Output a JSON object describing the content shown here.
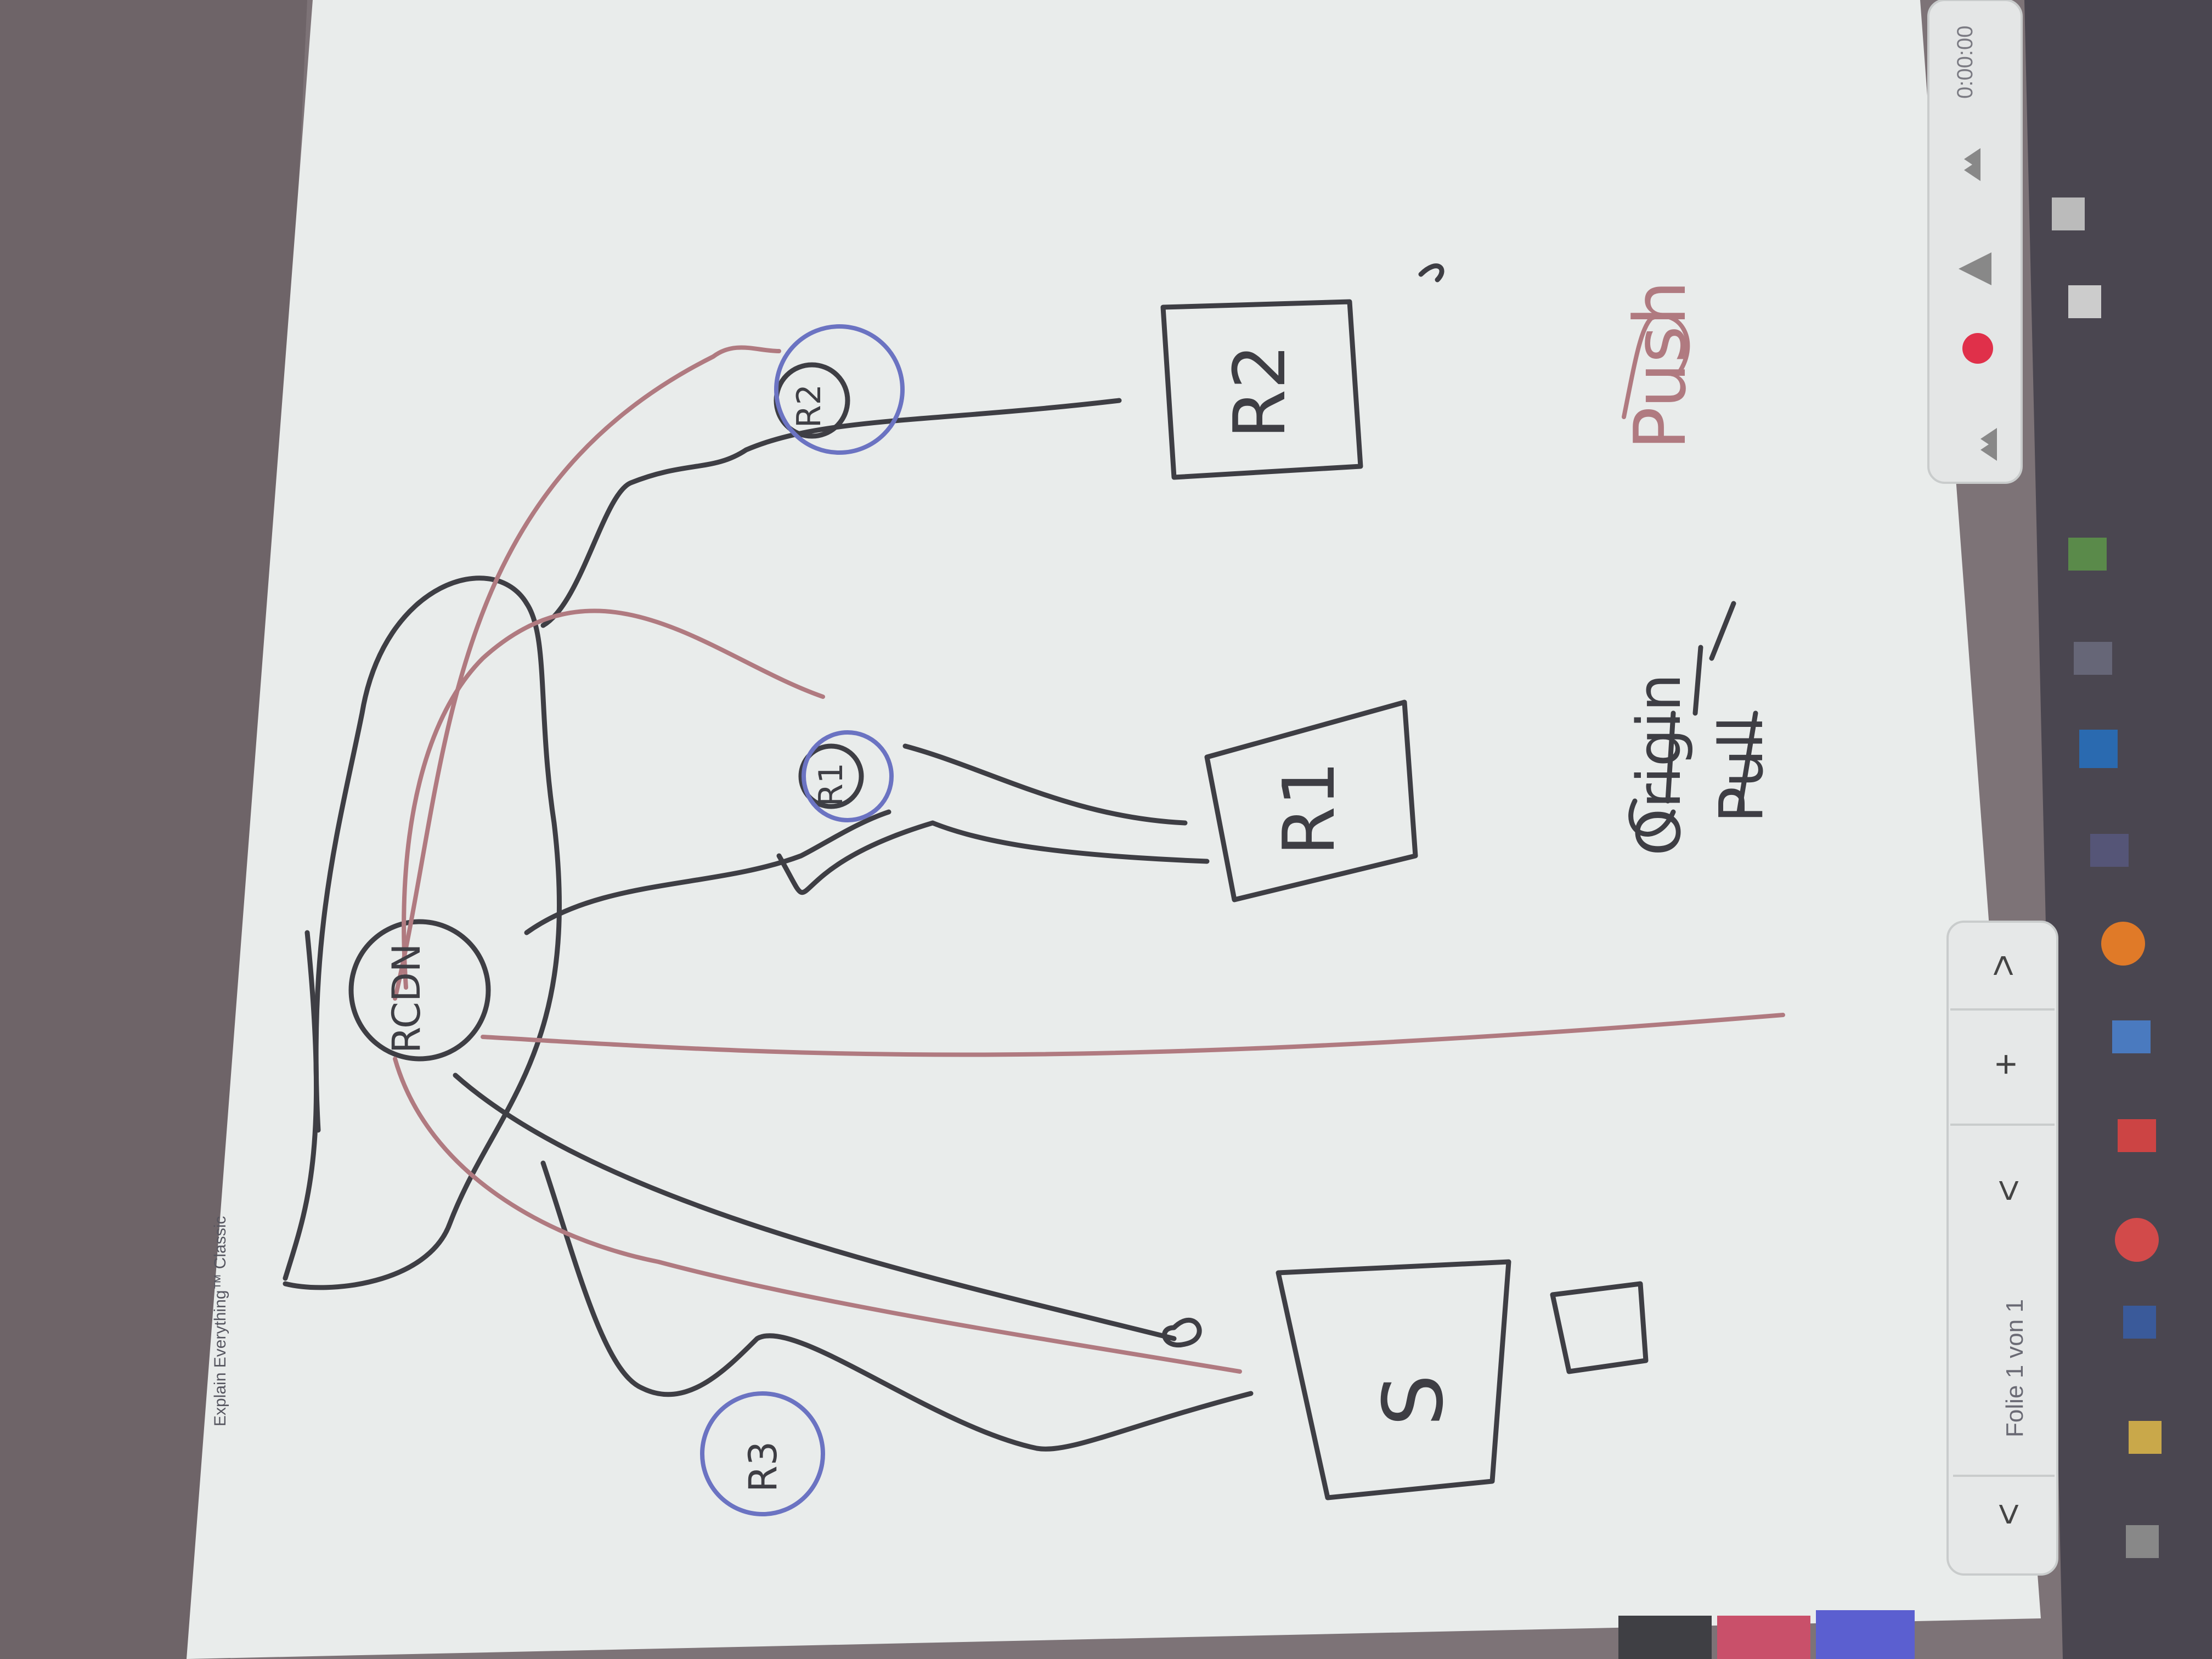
{
  "app": {
    "title": "Explain Everything™ Classic"
  },
  "slide_nav": {
    "label": "Folie 1 von 1",
    "prev_symbol": "<",
    "add_symbol": "+",
    "next_symbol": ">"
  },
  "recorder": {
    "time": "0:00:00"
  },
  "canvas": {
    "labels": {
      "node_center": "RCDN",
      "node_top_left": "R3",
      "node_middle": "R1",
      "node_right": "R2",
      "box_s": "S",
      "box_r1": "R1",
      "box_r2": "R2",
      "text_origin": "Origin",
      "text_pull": "Pull",
      "text_push": "Push"
    }
  },
  "pen_colors": {
    "ink_dark": "#3e3e44",
    "ink_red": "#b07a80",
    "ink_blue": "#6b73c2"
  },
  "palette": {
    "swatches": [
      "#3f3f44",
      "#c9506a",
      "#5b5fd0"
    ]
  }
}
